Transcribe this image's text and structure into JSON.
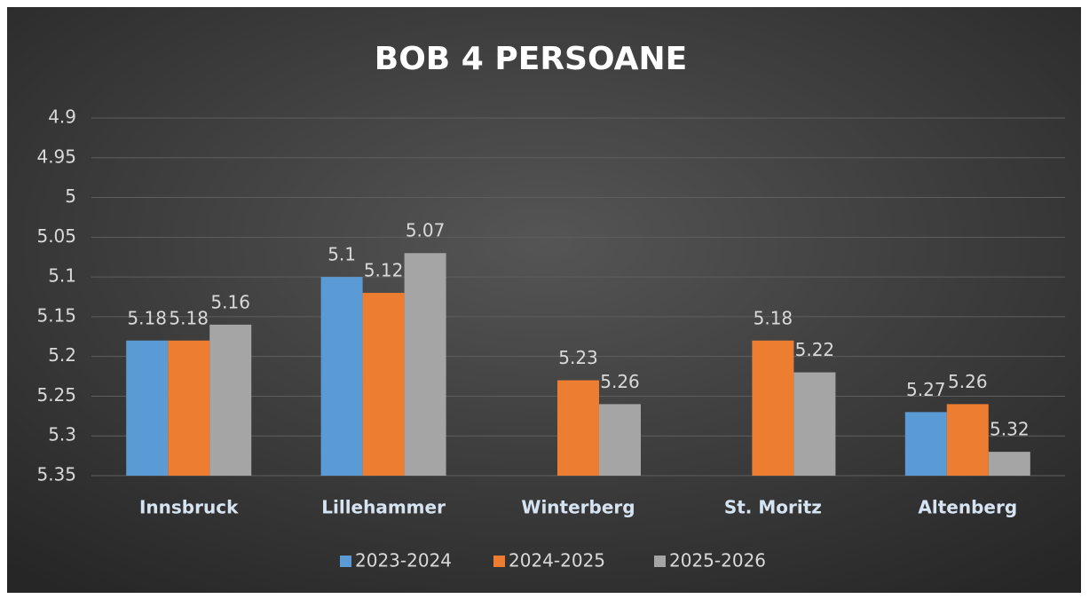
{
  "chart_data": {
    "type": "bar",
    "title": "BOB 4 PERSOANE",
    "categories": [
      "Innsbruck",
      "Lillehammer",
      "Winterberg",
      "St. Moritz",
      "Altenberg"
    ],
    "series": [
      {
        "name": "2023-2024",
        "color": "#5b9bd5",
        "values": [
          5.18,
          5.1,
          null,
          null,
          5.27
        ]
      },
      {
        "name": "2024-2025",
        "color": "#ed7d31",
        "values": [
          5.18,
          5.12,
          5.23,
          5.18,
          5.26
        ]
      },
      {
        "name": "2025-2026",
        "color": "#a5a5a5",
        "values": [
          5.16,
          5.07,
          5.26,
          5.22,
          5.32
        ]
      }
    ],
    "ylim": [
      5.35,
      4.9
    ],
    "yticks": [
      4.9,
      4.95,
      5,
      5.05,
      5.1,
      5.15,
      5.2,
      5.25,
      5.3,
      5.35
    ],
    "grid": true,
    "legend": "bottom"
  }
}
